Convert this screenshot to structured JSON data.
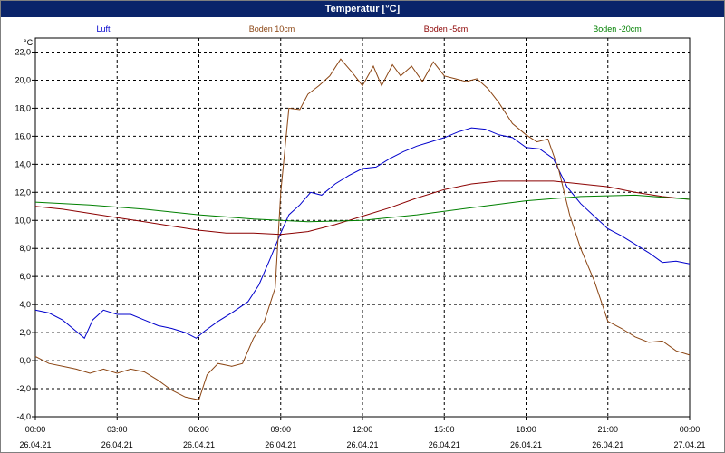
{
  "window": {
    "title": "Temperatur [°C]"
  },
  "chart_data": {
    "type": "line",
    "title": "Temperatur [°C]",
    "ylabel": "°C",
    "xlabel": "",
    "ylim": [
      -4.0,
      23.0
    ],
    "xlim": [
      0,
      24
    ],
    "grid": true,
    "legend_position": "top",
    "y_ticks": [
      "22,0",
      "20,0",
      "18,0",
      "16,0",
      "14,0",
      "12,0",
      "10,0",
      "8,0",
      "6,0",
      "4,0",
      "2,0",
      "0,0",
      "-2,0",
      "-4,0"
    ],
    "y_tick_values": [
      22,
      20,
      18,
      16,
      14,
      12,
      10,
      8,
      6,
      4,
      2,
      0,
      -2,
      -4
    ],
    "x_ticks": [
      {
        "x": 0,
        "time": "00:00",
        "date": "26.04.21"
      },
      {
        "x": 3,
        "time": "03:00",
        "date": "26.04.21"
      },
      {
        "x": 6,
        "time": "06:00",
        "date": "26.04.21"
      },
      {
        "x": 9,
        "time": "09:00",
        "date": "26.04.21"
      },
      {
        "x": 12,
        "time": "12:00",
        "date": "26.04.21"
      },
      {
        "x": 15,
        "time": "15:00",
        "date": "26.04.21"
      },
      {
        "x": 18,
        "time": "18:00",
        "date": "26.04.21"
      },
      {
        "x": 21,
        "time": "21:00",
        "date": "26.04.21"
      },
      {
        "x": 24,
        "time": "00:00",
        "date": "27.04.21"
      }
    ],
    "series": [
      {
        "name": "Luft",
        "color": "#0000cc",
        "points": [
          [
            0,
            3.6
          ],
          [
            0.5,
            3.4
          ],
          [
            1,
            2.9
          ],
          [
            1.5,
            2.1
          ],
          [
            1.8,
            1.6
          ],
          [
            2.1,
            2.9
          ],
          [
            2.5,
            3.6
          ],
          [
            3,
            3.3
          ],
          [
            3.5,
            3.3
          ],
          [
            4,
            2.9
          ],
          [
            4.5,
            2.5
          ],
          [
            5,
            2.3
          ],
          [
            5.5,
            2.0
          ],
          [
            5.9,
            1.6
          ],
          [
            6.2,
            2.1
          ],
          [
            6.7,
            2.8
          ],
          [
            7.2,
            3.4
          ],
          [
            7.8,
            4.2
          ],
          [
            8.2,
            5.4
          ],
          [
            8.6,
            7.2
          ],
          [
            9,
            9.1
          ],
          [
            9.3,
            10.4
          ],
          [
            9.7,
            11.1
          ],
          [
            10.1,
            12.0
          ],
          [
            10.5,
            11.8
          ],
          [
            11,
            12.6
          ],
          [
            11.5,
            13.2
          ],
          [
            12,
            13.7
          ],
          [
            12.5,
            13.8
          ],
          [
            13,
            14.4
          ],
          [
            13.5,
            14.9
          ],
          [
            14,
            15.3
          ],
          [
            14.5,
            15.6
          ],
          [
            15,
            15.9
          ],
          [
            15.5,
            16.3
          ],
          [
            16,
            16.6
          ],
          [
            16.5,
            16.5
          ],
          [
            17,
            16.1
          ],
          [
            17.5,
            15.9
          ],
          [
            18,
            15.2
          ],
          [
            18.5,
            15.1
          ],
          [
            19,
            14.4
          ],
          [
            19.5,
            12.4
          ],
          [
            20,
            11.2
          ],
          [
            20.5,
            10.3
          ],
          [
            21,
            9.4
          ],
          [
            21.5,
            8.9
          ],
          [
            22,
            8.3
          ],
          [
            22.5,
            7.7
          ],
          [
            23,
            7.0
          ],
          [
            23.5,
            7.1
          ],
          [
            24,
            6.9
          ]
        ]
      },
      {
        "name": "Boden 10cm",
        "color": "#8b4513",
        "points": [
          [
            0,
            0.3
          ],
          [
            0.5,
            -0.2
          ],
          [
            1,
            -0.4
          ],
          [
            1.5,
            -0.6
          ],
          [
            2,
            -0.9
          ],
          [
            2.5,
            -0.6
          ],
          [
            3,
            -0.9
          ],
          [
            3.5,
            -0.6
          ],
          [
            4,
            -0.8
          ],
          [
            4.5,
            -1.4
          ],
          [
            5,
            -2.1
          ],
          [
            5.5,
            -2.6
          ],
          [
            6,
            -2.8
          ],
          [
            6.3,
            -1.0
          ],
          [
            6.7,
            -0.2
          ],
          [
            7.2,
            -0.4
          ],
          [
            7.6,
            -0.2
          ],
          [
            8,
            1.6
          ],
          [
            8.4,
            2.8
          ],
          [
            8.8,
            5.2
          ],
          [
            9.0,
            12.0
          ],
          [
            9.3,
            18.0
          ],
          [
            9.7,
            17.9
          ],
          [
            10,
            19.0
          ],
          [
            10.4,
            19.6
          ],
          [
            10.8,
            20.3
          ],
          [
            11.2,
            21.5
          ],
          [
            11.6,
            20.6
          ],
          [
            12,
            19.6
          ],
          [
            12.4,
            21.0
          ],
          [
            12.7,
            19.6
          ],
          [
            13.1,
            21.1
          ],
          [
            13.4,
            20.3
          ],
          [
            13.8,
            21.0
          ],
          [
            14.2,
            19.9
          ],
          [
            14.6,
            21.3
          ],
          [
            15,
            20.3
          ],
          [
            15.4,
            20.1
          ],
          [
            15.8,
            19.9
          ],
          [
            16.2,
            20.1
          ],
          [
            16.6,
            19.4
          ],
          [
            17,
            18.4
          ],
          [
            17.5,
            16.9
          ],
          [
            18,
            16.1
          ],
          [
            18.4,
            15.6
          ],
          [
            18.8,
            15.8
          ],
          [
            19.2,
            13.6
          ],
          [
            19.6,
            10.4
          ],
          [
            20,
            8.0
          ],
          [
            20.5,
            5.7
          ],
          [
            21,
            2.8
          ],
          [
            21.5,
            2.3
          ],
          [
            22,
            1.7
          ],
          [
            22.5,
            1.3
          ],
          [
            23,
            1.4
          ],
          [
            23.5,
            0.7
          ],
          [
            24,
            0.4
          ]
        ]
      },
      {
        "name": "Boden -5cm",
        "color": "#8b0000",
        "points": [
          [
            0,
            11.0
          ],
          [
            1,
            10.8
          ],
          [
            2,
            10.5
          ],
          [
            3,
            10.2
          ],
          [
            4,
            9.9
          ],
          [
            5,
            9.6
          ],
          [
            6,
            9.3
          ],
          [
            7,
            9.1
          ],
          [
            8,
            9.1
          ],
          [
            9,
            9.0
          ],
          [
            10,
            9.2
          ],
          [
            11,
            9.7
          ],
          [
            12,
            10.3
          ],
          [
            13,
            10.9
          ],
          [
            14,
            11.6
          ],
          [
            15,
            12.2
          ],
          [
            16,
            12.6
          ],
          [
            17,
            12.8
          ],
          [
            18,
            12.8
          ],
          [
            19,
            12.8
          ],
          [
            20,
            12.6
          ],
          [
            21,
            12.4
          ],
          [
            22,
            12.0
          ],
          [
            23,
            11.7
          ],
          [
            24,
            11.5
          ]
        ]
      },
      {
        "name": "Boden -20cm",
        "color": "#008000",
        "points": [
          [
            0,
            11.3
          ],
          [
            2,
            11.1
          ],
          [
            4,
            10.8
          ],
          [
            6,
            10.4
          ],
          [
            8,
            10.1
          ],
          [
            10,
            9.9
          ],
          [
            12,
            10.0
          ],
          [
            14,
            10.4
          ],
          [
            16,
            10.9
          ],
          [
            18,
            11.4
          ],
          [
            20,
            11.7
          ],
          [
            22,
            11.8
          ],
          [
            24,
            11.5
          ]
        ]
      }
    ]
  }
}
